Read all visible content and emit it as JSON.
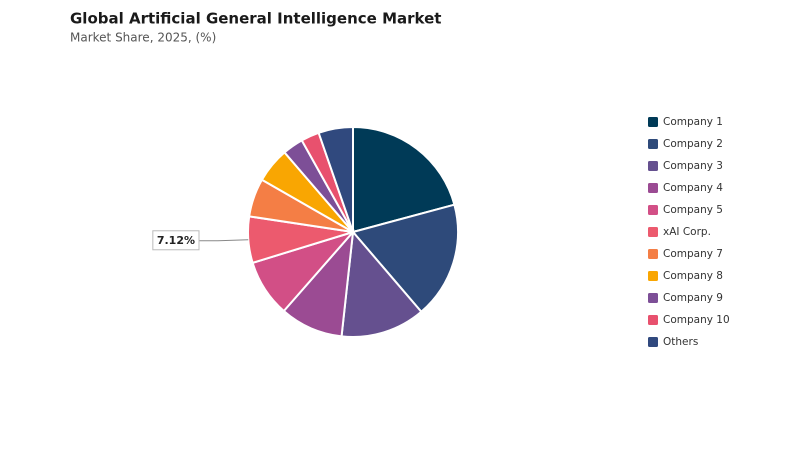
{
  "chart_data": {
    "type": "pie",
    "title": "Global Artificial General Intelligence Market",
    "subtitle": "Market Share, 2025, (%)",
    "categories": [
      "Company 1",
      "Company 2",
      "Company 3",
      "Company 4",
      "Company 5",
      "xAI Corp.",
      "Company 7",
      "Company 8",
      "Company 9",
      "Company 10",
      "Others"
    ],
    "values": [
      20.8,
      17.9,
      13,
      9.7,
      8.8,
      7.12,
      5.9,
      5.4,
      3.2,
      2.8,
      5.3
    ],
    "value_labels": [
      null,
      null,
      null,
      null,
      null,
      "7.12%",
      null,
      null,
      null,
      null,
      null
    ],
    "colors": [
      "#003a57",
      "#2e4a7a",
      "#65508f",
      "#9b4b93",
      "#d24f86",
      "#ec5a6e",
      "#f47e45",
      "#f9a602",
      "#7d4f97",
      "#e8516e",
      "#30497e"
    ],
    "legend": "right"
  }
}
